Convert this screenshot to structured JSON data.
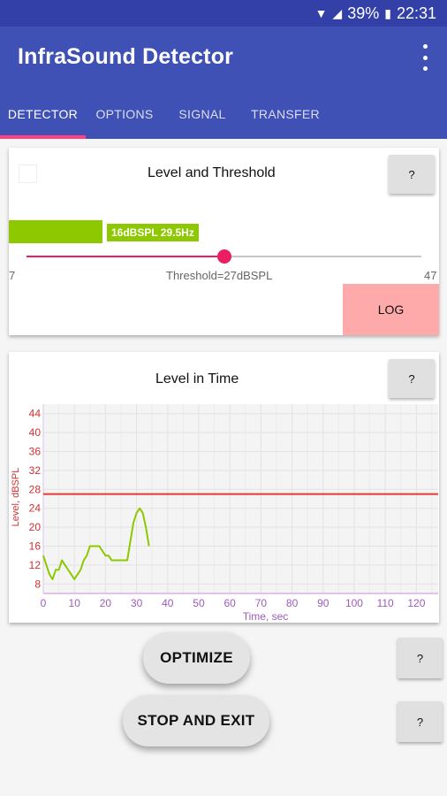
{
  "status_bar": {
    "battery": "39%",
    "time": "22:31",
    "wifi_icon": "wifi-icon",
    "signal_icon": "signal-icon",
    "battery_icon": "battery-icon"
  },
  "app_bar": {
    "title": "InfraSound Detector",
    "menu_icon": "overflow-menu-icon"
  },
  "tabs": [
    {
      "label": "DETECTOR",
      "active": true
    },
    {
      "label": "OPTIONS",
      "active": false
    },
    {
      "label": "SIGNAL",
      "active": false
    },
    {
      "label": "TRANSFER",
      "active": false
    }
  ],
  "level_card": {
    "title": "Level and Threshold",
    "help_label": "?",
    "checkbox_checked": false,
    "level_readout": "16dBSPL 29.5Hz",
    "slider_min": "7",
    "slider_max": "47",
    "slider_value": 27,
    "threshold_text": "Threshold=27dBSPL",
    "log_button": "LOG",
    "log_color": "#ffaaaa",
    "level_color": "#8dc800"
  },
  "time_card": {
    "title": "Level in Time",
    "help_label": "?"
  },
  "chart_data": {
    "type": "line",
    "title": "",
    "xlabel": "Time, sec",
    "ylabel": "Level, dBSPL",
    "xlim": [
      0,
      127
    ],
    "ylim": [
      6,
      46
    ],
    "x_ticks": [
      0,
      10,
      20,
      30,
      40,
      50,
      60,
      70,
      80,
      90,
      100,
      110,
      120
    ],
    "y_ticks": [
      8,
      12,
      16,
      20,
      24,
      28,
      32,
      36,
      40,
      44
    ],
    "grid": true,
    "threshold": 27,
    "series": [
      {
        "color": "#8dc800",
        "x": [
          0,
          1,
          2,
          3,
          4,
          5,
          6,
          7,
          8,
          9,
          10,
          11,
          12,
          13,
          14,
          15,
          16,
          17,
          18,
          19,
          20,
          21,
          22,
          23,
          24,
          25,
          26,
          27,
          28,
          29,
          30,
          31,
          32,
          33,
          34
        ],
        "y": [
          14,
          12,
          10,
          9,
          11,
          11,
          13,
          12,
          11,
          10,
          9,
          10,
          11,
          13,
          14,
          16,
          16,
          16,
          16,
          15,
          14,
          14,
          13,
          13,
          13,
          13,
          13,
          13,
          17,
          21,
          23,
          24,
          23,
          20,
          16
        ]
      }
    ],
    "threshold_color": "#e53935",
    "axis_label_color": "#9c5bbd",
    "y_tick_color": "#d32f2f"
  },
  "buttons": {
    "optimize": "OPTIMIZE",
    "optimize_help": "?",
    "stop_exit": "STOP AND EXIT",
    "stop_exit_help": "?"
  }
}
